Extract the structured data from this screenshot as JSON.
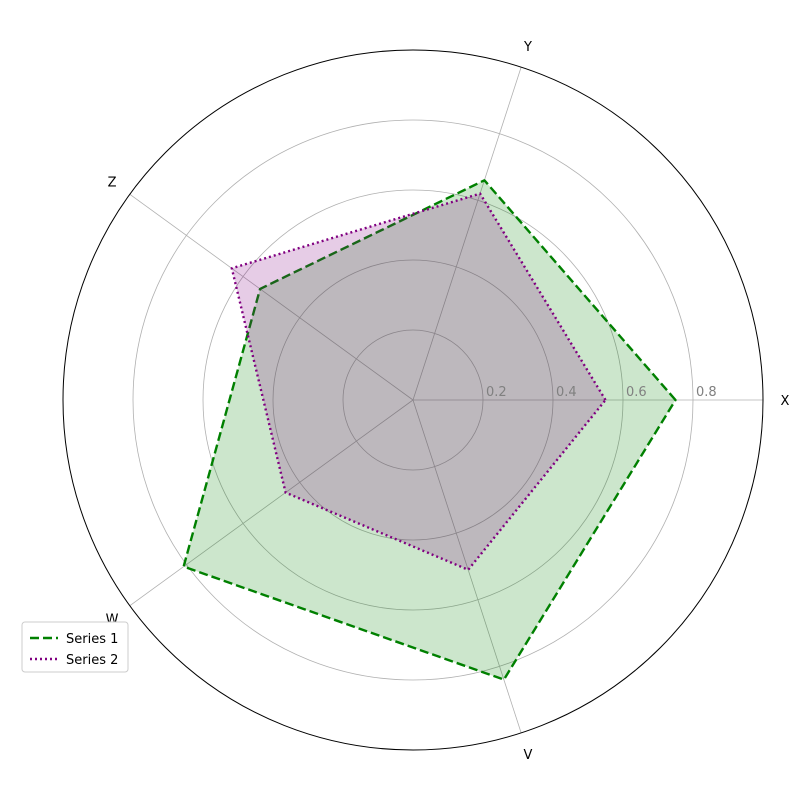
{
  "chart_data": {
    "type": "radar",
    "categories": [
      "X",
      "Y",
      "Z",
      "W",
      "V"
    ],
    "angles_deg": [
      0,
      72,
      144,
      216,
      288
    ],
    "rlim": [
      0,
      1.0
    ],
    "rticks": [
      0.2,
      0.4,
      0.6,
      0.8
    ],
    "rtick_labels": [
      "0.2",
      "0.4",
      "0.6",
      "0.8"
    ],
    "grid": true,
    "legend_position": "lower-left",
    "series": [
      {
        "name": "Series 1",
        "values": [
          0.75,
          0.66,
          0.54,
          0.81,
          0.84
        ],
        "color": "#008000",
        "line_style": "dashed",
        "fill_alpha": 0.2
      },
      {
        "name": "Series 2",
        "values": [
          0.55,
          0.62,
          0.64,
          0.45,
          0.51
        ],
        "color": "#800080",
        "line_style": "dotted",
        "fill_alpha": 0.2
      }
    ]
  }
}
